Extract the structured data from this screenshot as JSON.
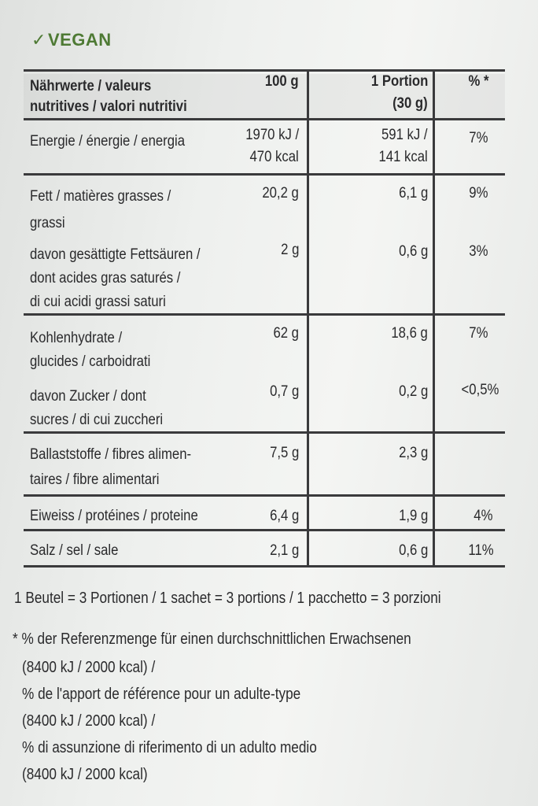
{
  "vegan": {
    "check": "✓",
    "label": "VEGAN"
  },
  "table": {
    "header": {
      "col1_l1": "Nährwerte / valeurs",
      "col1_l2": "nutritives / valori nutritivi",
      "col2": "100 g",
      "col3_l1": "1 Portion",
      "col3_l2": "(30 g)",
      "col4": "% *"
    },
    "rows": [
      {
        "name_l1": "Energie / énergie / energia",
        "v100_l1": "1970 kJ /",
        "v100_l2": "470 kcal",
        "vport_l1": "591 kJ /",
        "vport_l2": "141 kcal",
        "pct": "7%"
      },
      {
        "name_l1": "Fett / matières grasses /",
        "name_l2": "grassi",
        "v100": "20,2 g",
        "vport": "6,1 g",
        "pct": "9%"
      },
      {
        "name_l1": "davon gesättigte Fettsäuren /",
        "name_l2": "dont acides gras saturés /",
        "name_l3": "di cui acidi grassi saturi",
        "v100": "2 g",
        "vport": "0,6 g",
        "pct": "3%"
      },
      {
        "name_l1": "Kohlenhydrate /",
        "name_l2": "glucides / carboidrati",
        "v100": "62 g",
        "vport": "18,6 g",
        "pct": "7%"
      },
      {
        "name_l1": "davon Zucker / dont",
        "name_l2": "sucres / di cui zuccheri",
        "v100": "0,7 g",
        "vport": "0,2 g",
        "pct": "<0,5%"
      },
      {
        "name_l1": "Ballaststoffe / fibres alimen-",
        "name_l2": "taires / fibre alimentari",
        "v100": "7,5 g",
        "vport": "2,3 g",
        "pct": ""
      },
      {
        "name_l1": "Eiweiss / protéines / proteine",
        "v100": "6,4 g",
        "vport": "1,9 g",
        "pct": "4%"
      },
      {
        "name_l1": "Salz / sel / sale",
        "v100": "2,1 g",
        "vport": "0,6 g",
        "pct": "11%"
      }
    ]
  },
  "footer": {
    "servings": "1 Beutel = 3 Portionen / 1 sachet = 3 portions / 1 pacchetto = 3 porzioni",
    "ref_de": "* % der Referenzmenge für einen durchschnittlichen Erwachsenen",
    "ref_de_val": "(8400 kJ / 2000 kcal) /",
    "ref_fr": "% de l'apport de référence pour un adulte-type",
    "ref_fr_val": "(8400 kJ / 2000 kcal) /",
    "ref_it": "% di assunzione di riferimento di un adulto medio",
    "ref_it_val": "(8400 kJ / 2000 kcal)"
  }
}
